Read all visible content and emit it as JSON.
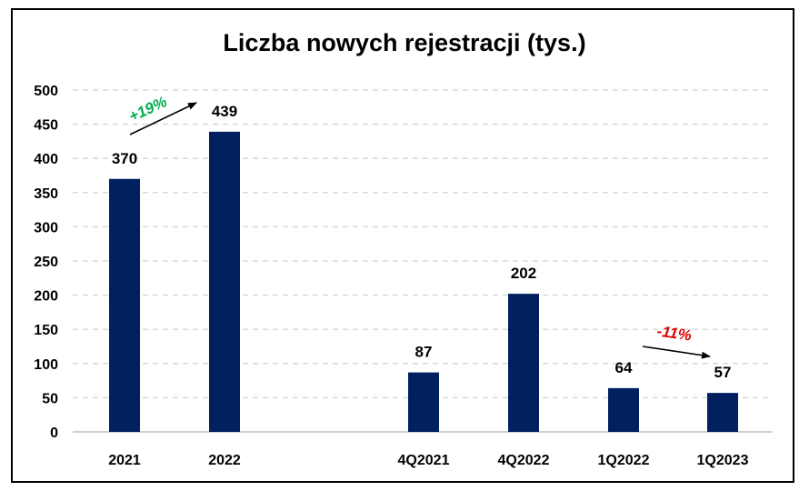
{
  "chart_data": {
    "type": "bar",
    "title": "Liczba nowych rejestracji (tys.)",
    "xlabel": "",
    "ylabel": "",
    "ylim": [
      0,
      500
    ],
    "yticks": [
      0,
      50,
      100,
      150,
      200,
      250,
      300,
      350,
      400,
      450,
      500
    ],
    "grid": true,
    "legend": "none",
    "categories": [
      "2021",
      "2022",
      "4Q2021",
      "4Q2022",
      "1Q2022",
      "1Q2023"
    ],
    "values": [
      370,
      439,
      87,
      202,
      64,
      57
    ],
    "bar_color": "#002060",
    "annotations": [
      {
        "text": "+19%",
        "color": "#00B050",
        "from": "2021",
        "to": "2022"
      },
      {
        "text": "-11%",
        "color": "#E00000",
        "from": "1Q2022",
        "to": "1Q2023"
      }
    ]
  }
}
